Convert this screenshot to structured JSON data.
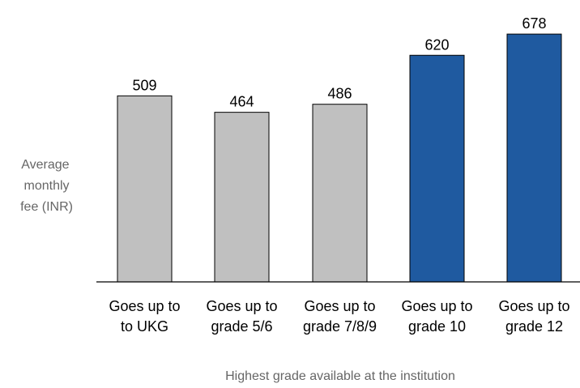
{
  "chart_data": {
    "type": "bar",
    "categories": [
      [
        "Goes up to",
        "to UKG"
      ],
      [
        "Goes up to",
        "grade 5/6"
      ],
      [
        "Goes up to",
        "grade 7/8/9"
      ],
      [
        "Goes up to",
        "grade 10"
      ],
      [
        "Goes up to",
        "grade 12"
      ]
    ],
    "values": [
      509,
      464,
      486,
      620,
      678
    ],
    "data_labels": [
      "509",
      "464",
      "486",
      "620",
      "678"
    ],
    "bar_colors": [
      "#c0c0c0",
      "#c0c0c0",
      "#c0c0c0",
      "#1f5aa0",
      "#1f5aa0"
    ],
    "bar_stroke": "#000000",
    "ylabel": [
      "Average",
      "monthly",
      "fee (INR)"
    ],
    "xlabel": "Highest grade available at the institution",
    "ylim": [
      0,
      700
    ],
    "grid": false,
    "legend": "none"
  }
}
